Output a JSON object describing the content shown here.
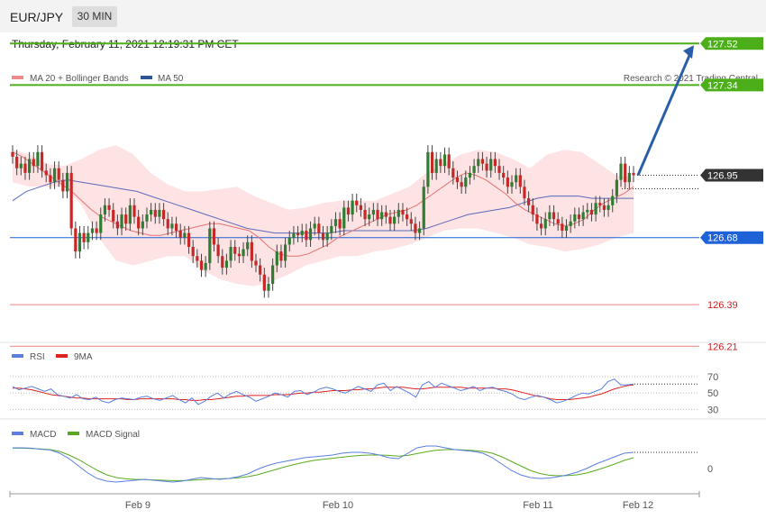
{
  "header": {
    "symbol": "EUR/JPY",
    "timeframe": "30 MIN",
    "datetime": "Thursday, February 11, 2021 12:19:31 PM CET"
  },
  "legend": {
    "ma20_label": "MA 20 + Bollinger Bands",
    "ma50_label": "MA 50",
    "credit": "Research © 2021 Trading Central",
    "rsi_label": "RSI",
    "rsi_ma_label": "9MA",
    "macd_label": "MACD",
    "macd_signal_label": "MACD Signal"
  },
  "colors": {
    "bull": "#2e7d32",
    "bear": "#c62828",
    "band_fill": "#fde3e3",
    "ma20": "#e57373",
    "ma50": "#3f51b5",
    "resistance": "#4caf1a",
    "pivot": "#1e62d8",
    "support": "#f08080",
    "current": "#333333",
    "arrow": "#2a5ea8",
    "rsi": "#5b7fe0",
    "rsi_ma": "#dd2222",
    "macd": "#5b7fe0",
    "macd_signal": "#5aaa20"
  },
  "chart_data": [
    {
      "type": "candlestick",
      "x_axis_ticks": [
        "Feb 9",
        "Feb 10",
        "Feb 11",
        "Feb 12"
      ],
      "ylim": [
        126.14,
        127.56
      ],
      "levels": [
        {
          "value": 127.52,
          "label": "127.52",
          "kind": "resistance"
        },
        {
          "value": 127.34,
          "label": "127.34",
          "kind": "resistance"
        },
        {
          "value": 126.95,
          "label": "126.95",
          "kind": "current"
        },
        {
          "value": 126.68,
          "label": "126.68",
          "kind": "pivot"
        },
        {
          "value": 126.39,
          "label": "126.39",
          "kind": "support"
        },
        {
          "value": 126.21,
          "label": "126.21",
          "kind": "support"
        }
      ],
      "forecast": {
        "from": 126.95,
        "to": 127.52
      },
      "closes": [
        127.03,
        126.98,
        127.0,
        126.96,
        127.02,
        126.99,
        127.05,
        126.97,
        126.95,
        126.92,
        126.98,
        126.93,
        126.88,
        126.96,
        126.72,
        126.62,
        126.7,
        126.66,
        126.7,
        126.72,
        126.7,
        126.78,
        126.82,
        126.8,
        126.75,
        126.72,
        126.78,
        126.74,
        126.82,
        126.77,
        126.72,
        126.75,
        126.78,
        126.8,
        126.77,
        126.8,
        126.76,
        126.72,
        126.74,
        126.71,
        126.68,
        126.7,
        126.64,
        126.6,
        126.58,
        126.54,
        126.57,
        126.72,
        126.65,
        126.6,
        126.55,
        126.58,
        126.64,
        126.61,
        126.6,
        126.63,
        126.66,
        126.58,
        126.56,
        126.52,
        126.45,
        126.48,
        126.56,
        126.62,
        126.58,
        126.65,
        126.68,
        126.7,
        126.69,
        126.71,
        126.67,
        126.72,
        126.74,
        126.7,
        126.67,
        126.7,
        126.73,
        126.76,
        126.72,
        126.81,
        126.78,
        126.84,
        126.82,
        126.8,
        126.76,
        126.78,
        126.8,
        126.76,
        126.79,
        126.77,
        126.74,
        126.77,
        126.8,
        126.78,
        126.76,
        126.74,
        126.7,
        126.72,
        126.9,
        127.05,
        126.96,
        127.02,
        126.99,
        127.04,
        126.98,
        126.94,
        126.92,
        126.9,
        126.94,
        126.96,
        126.99,
        127.02,
        127.0,
        126.97,
        127.02,
        126.99,
        126.96,
        126.94,
        126.9,
        126.92,
        126.95,
        126.9,
        126.85,
        126.82,
        126.78,
        126.74,
        126.72,
        126.76,
        126.79,
        126.76,
        126.74,
        126.71,
        126.73,
        126.75,
        126.78,
        126.76,
        126.79,
        126.8,
        126.78,
        126.83,
        126.82,
        126.8,
        126.82,
        126.86,
        126.93,
        127.0,
        126.92,
        126.96,
        126.95
      ],
      "ma20": [
        127.05,
        127.03,
        127.0,
        126.97,
        126.94,
        126.91,
        126.88,
        126.84,
        126.8,
        126.77,
        126.75,
        126.73,
        126.71,
        126.7,
        126.69,
        126.69,
        126.7,
        126.71,
        126.72,
        126.73,
        126.74,
        126.74,
        126.73,
        126.72,
        126.71,
        126.68,
        126.64,
        126.61,
        126.6,
        126.6,
        126.61,
        126.63,
        126.65,
        126.68,
        126.7,
        126.72,
        126.74,
        126.76,
        126.78,
        126.79,
        126.8,
        126.82,
        126.85,
        126.88,
        126.91,
        126.94,
        126.96,
        126.95,
        126.93,
        126.9,
        126.87,
        126.83,
        126.8,
        126.78,
        126.76,
        126.74,
        126.73,
        126.74,
        126.76,
        126.8,
        126.83,
        126.85,
        126.87,
        126.9
      ],
      "ma50": [
        126.84,
        126.88,
        126.9,
        126.92,
        126.93,
        126.92,
        126.91,
        126.9,
        126.89,
        126.88,
        126.86,
        126.84,
        126.82,
        126.8,
        126.78,
        126.76,
        126.74,
        126.72,
        126.71,
        126.7,
        126.7,
        126.7,
        126.7,
        126.7,
        126.71,
        126.71,
        126.71,
        126.71,
        126.71,
        126.71,
        126.72,
        126.74,
        126.76,
        126.78,
        126.79,
        126.8,
        126.81,
        126.83,
        126.85,
        126.86,
        126.86,
        126.86,
        126.85,
        126.85,
        126.85,
        126.85
      ],
      "band_upper": [
        127.06,
        127.04,
        127.0,
        126.99,
        127.02,
        127.06,
        127.08,
        127.04,
        126.96,
        126.91,
        126.88,
        126.88,
        126.89,
        126.9,
        126.86,
        126.83,
        126.8,
        126.81,
        126.83,
        126.84,
        126.84,
        126.84,
        126.87,
        126.9,
        126.96,
        127.0,
        127.04,
        127.06,
        127.05,
        127.02,
        126.98,
        127.04,
        127.06,
        127.05,
        127.0,
        126.95,
        126.94
      ],
      "band_lower": [
        126.92,
        126.9,
        126.9,
        126.9,
        126.82,
        126.68,
        126.58,
        126.56,
        126.58,
        126.6,
        126.6,
        126.54,
        126.5,
        126.48,
        126.47,
        126.49,
        126.52,
        126.56,
        126.58,
        126.6,
        126.6,
        126.62,
        126.63,
        126.65,
        126.68,
        126.71,
        126.72,
        126.72,
        126.7,
        126.68,
        126.65,
        126.64,
        126.62,
        126.63,
        126.65,
        126.68,
        126.7
      ]
    },
    {
      "type": "line",
      "name_label": "RSI",
      "y_ticks": [
        70,
        50,
        30
      ],
      "ylim": [
        28,
        78
      ],
      "series": [
        {
          "name": "RSI",
          "values": [
            58,
            54,
            56,
            58,
            55,
            52,
            55,
            48,
            46,
            44,
            48,
            43,
            42,
            45,
            40,
            38,
            42,
            44,
            43,
            42,
            45,
            46,
            43,
            41,
            44,
            47,
            42,
            38,
            44,
            36,
            40,
            46,
            50,
            44,
            49,
            52,
            48,
            45,
            40,
            43,
            46,
            50,
            48,
            45,
            52,
            53,
            48,
            51,
            55,
            57,
            55,
            52,
            50,
            54,
            58,
            55,
            52,
            60,
            62,
            53,
            58,
            54,
            50,
            45,
            60,
            64,
            57,
            62,
            59,
            56,
            53,
            55,
            58,
            53,
            56,
            57,
            54,
            52,
            49,
            44,
            42,
            45,
            47,
            45,
            42,
            38,
            40,
            43,
            47,
            50,
            49,
            52,
            55,
            64,
            67,
            60,
            60,
            61
          ]
        },
        {
          "name": "9MA",
          "values": [
            56,
            56,
            55,
            54,
            52,
            50,
            48,
            47,
            46,
            45,
            44,
            44,
            43,
            43,
            43,
            43,
            43,
            43,
            42,
            42,
            43,
            43,
            43,
            43,
            43,
            43,
            42,
            42,
            41,
            41,
            42,
            42,
            43,
            44,
            45,
            46,
            46,
            47,
            47,
            47,
            47,
            48,
            48,
            48,
            49,
            50,
            50,
            51,
            51,
            52,
            53,
            53,
            53,
            54,
            54,
            55,
            55,
            56,
            57,
            57,
            57,
            57,
            56,
            55,
            55,
            56,
            57,
            57,
            57,
            57,
            57,
            56,
            56,
            56,
            56,
            56,
            55,
            55,
            54,
            52,
            50,
            48,
            46,
            45,
            43,
            42,
            42,
            42,
            43,
            44,
            45,
            47,
            49,
            52,
            55,
            57,
            59,
            60
          ]
        }
      ]
    },
    {
      "type": "line",
      "name_label": "MACD",
      "y_ticks": [
        0
      ],
      "ylim": [
        -0.12,
        0.14
      ],
      "series": [
        {
          "name": "MACD",
          "values": [
            0.1,
            0.1,
            0.098,
            0.092,
            0.088,
            0.07,
            0.04,
            0.0,
            -0.04,
            -0.07,
            -0.085,
            -0.09,
            -0.085,
            -0.08,
            -0.075,
            -0.08,
            -0.085,
            -0.09,
            -0.085,
            -0.075,
            -0.065,
            -0.07,
            -0.075,
            -0.07,
            -0.06,
            -0.045,
            -0.02,
            0.0,
            0.015,
            0.025,
            0.035,
            0.045,
            0.05,
            0.055,
            0.06,
            0.07,
            0.075,
            0.075,
            0.07,
            0.06,
            0.045,
            0.04,
            0.07,
            0.1,
            0.11,
            0.11,
            0.1,
            0.09,
            0.085,
            0.08,
            0.07,
            0.045,
            0.01,
            -0.025,
            -0.05,
            -0.065,
            -0.07,
            -0.068,
            -0.06,
            -0.05,
            -0.035,
            -0.015,
            0.01,
            0.03,
            0.05,
            0.07,
            0.075
          ]
        },
        {
          "name": "MACD Signal",
          "values": [
            0.098,
            0.098,
            0.096,
            0.094,
            0.09,
            0.08,
            0.06,
            0.035,
            0.005,
            -0.025,
            -0.05,
            -0.065,
            -0.072,
            -0.075,
            -0.076,
            -0.078,
            -0.08,
            -0.082,
            -0.082,
            -0.08,
            -0.077,
            -0.074,
            -0.072,
            -0.07,
            -0.066,
            -0.06,
            -0.05,
            -0.035,
            -0.02,
            -0.005,
            0.008,
            0.02,
            0.03,
            0.036,
            0.042,
            0.048,
            0.054,
            0.058,
            0.06,
            0.06,
            0.058,
            0.054,
            0.058,
            0.068,
            0.078,
            0.086,
            0.09,
            0.09,
            0.088,
            0.085,
            0.08,
            0.07,
            0.05,
            0.025,
            0.0,
            -0.025,
            -0.042,
            -0.052,
            -0.055,
            -0.054,
            -0.05,
            -0.04,
            -0.025,
            -0.008,
            0.01,
            0.03,
            0.045
          ]
        }
      ]
    }
  ]
}
